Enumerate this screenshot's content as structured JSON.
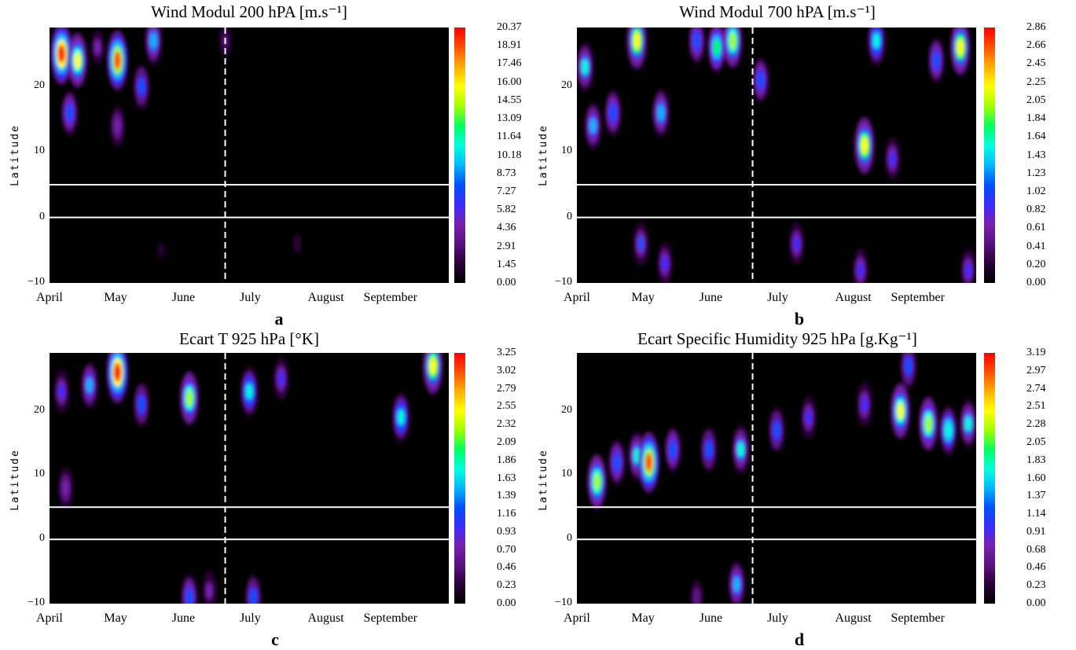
{
  "colors": {
    "background": "#000000",
    "guide_lines": "#ffffff"
  },
  "colorscale": [
    "#000000",
    "#2a0036",
    "#5a1280",
    "#7a20b0",
    "#3a2cff",
    "#0050ff",
    "#00b8ff",
    "#00ffe0",
    "#00ff60",
    "#a0ff00",
    "#ffff00",
    "#ffb000",
    "#ff5000",
    "#ff0000"
  ],
  "panels": [
    {
      "id": "a",
      "label": "a",
      "title": "Wind Modul 200 hPA [m.s⁻¹]",
      "ylabel": "Latitude",
      "yticks": [
        "20",
        "10",
        "0",
        "−10"
      ],
      "xticks": [
        "April",
        "May",
        "June",
        "July",
        "August",
        "September"
      ],
      "colorbar": [
        "20.37",
        "18.91",
        "17.46",
        "16.00",
        "14.55",
        "13.09",
        "11.64",
        "10.18",
        "8.73",
        "7.27",
        "5.82",
        "4.36",
        "2.91",
        "1.45",
        "0.00"
      ],
      "chart_data": {
        "type": "heatmap",
        "xlabel": "",
        "ylabel": "Latitude",
        "ylim": [
          -10,
          29
        ],
        "y_guides": [
          0,
          5
        ],
        "x_guide": "June 21",
        "zlim": [
          0.0,
          20.37
        ],
        "blobs": [
          {
            "t": 0.03,
            "lat": 25,
            "v": 20.0
          },
          {
            "t": 0.07,
            "lat": 24,
            "v": 15.0
          },
          {
            "t": 0.17,
            "lat": 24,
            "v": 18.5
          },
          {
            "t": 0.26,
            "lat": 27,
            "v": 10.0
          },
          {
            "t": 0.05,
            "lat": 16,
            "v": 8.0
          },
          {
            "t": 0.23,
            "lat": 20,
            "v": 7.5
          },
          {
            "t": 0.17,
            "lat": 14,
            "v": 5.0
          },
          {
            "t": 0.12,
            "lat": 26,
            "v": 4.0
          },
          {
            "t": 0.44,
            "lat": 27,
            "v": 2.5
          },
          {
            "t": 0.62,
            "lat": -4,
            "v": 1.5
          },
          {
            "t": 0.28,
            "lat": -5,
            "v": 1.0
          }
        ]
      }
    },
    {
      "id": "b",
      "label": "b",
      "title": "Wind Modul 700 hPA [m.s⁻¹]",
      "ylabel": "Latitude",
      "yticks": [
        "20",
        "10",
        "0",
        "−10"
      ],
      "xticks": [
        "April",
        "May",
        "June",
        "July",
        "August",
        "September"
      ],
      "colorbar": [
        "2.86",
        "2.66",
        "2.45",
        "2.25",
        "2.05",
        "1.84",
        "1.64",
        "1.43",
        "1.23",
        "1.02",
        "0.82",
        "0.61",
        "0.41",
        "0.20",
        "0.00"
      ],
      "chart_data": {
        "type": "heatmap",
        "xlabel": "",
        "ylabel": "Latitude",
        "ylim": [
          -10,
          29
        ],
        "y_guides": [
          0,
          5
        ],
        "x_guide": "June 21",
        "zlim": [
          0.0,
          2.86
        ],
        "blobs": [
          {
            "t": 0.02,
            "lat": 23,
            "v": 1.5
          },
          {
            "t": 0.04,
            "lat": 14,
            "v": 1.3
          },
          {
            "t": 0.09,
            "lat": 16,
            "v": 1.2
          },
          {
            "t": 0.15,
            "lat": 27,
            "v": 2.3
          },
          {
            "t": 0.21,
            "lat": 16,
            "v": 1.4
          },
          {
            "t": 0.3,
            "lat": 27,
            "v": 1.2
          },
          {
            "t": 0.35,
            "lat": 26,
            "v": 1.8
          },
          {
            "t": 0.39,
            "lat": 27,
            "v": 2.0
          },
          {
            "t": 0.46,
            "lat": 21,
            "v": 1.1
          },
          {
            "t": 0.75,
            "lat": 27,
            "v": 1.6
          },
          {
            "t": 0.72,
            "lat": 11,
            "v": 2.3
          },
          {
            "t": 0.79,
            "lat": 9,
            "v": 0.9
          },
          {
            "t": 0.96,
            "lat": 26,
            "v": 2.2
          },
          {
            "t": 0.9,
            "lat": 24,
            "v": 1.1
          },
          {
            "t": 0.16,
            "lat": -4,
            "v": 1.0
          },
          {
            "t": 0.22,
            "lat": -7,
            "v": 0.9
          },
          {
            "t": 0.55,
            "lat": -4,
            "v": 0.8
          },
          {
            "t": 0.71,
            "lat": -8,
            "v": 0.9
          },
          {
            "t": 0.98,
            "lat": -8,
            "v": 0.8
          }
        ]
      }
    },
    {
      "id": "c",
      "label": "c",
      "title": "Ecart T 925 hPa [°K]",
      "ylabel": "Latitude",
      "yticks": [
        "20",
        "10",
        "0",
        "−10"
      ],
      "xticks": [
        "April",
        "May",
        "June",
        "July",
        "August",
        "September"
      ],
      "colorbar": [
        "3.25",
        "3.02",
        "2.79",
        "2.55",
        "2.32",
        "2.09",
        "1.86",
        "1.63",
        "1.39",
        "1.16",
        "0.93",
        "0.70",
        "0.46",
        "0.23",
        "0.00"
      ],
      "chart_data": {
        "type": "heatmap",
        "xlabel": "",
        "ylabel": "Latitude",
        "ylim": [
          -10,
          29
        ],
        "y_guides": [
          0,
          5
        ],
        "x_guide": "June 21",
        "zlim": [
          0.0,
          3.25
        ],
        "blobs": [
          {
            "t": 0.17,
            "lat": 26,
            "v": 3.2
          },
          {
            "t": 0.03,
            "lat": 23,
            "v": 1.0
          },
          {
            "t": 0.1,
            "lat": 24,
            "v": 1.4
          },
          {
            "t": 0.23,
            "lat": 21,
            "v": 1.2
          },
          {
            "t": 0.35,
            "lat": 22,
            "v": 2.2
          },
          {
            "t": 0.5,
            "lat": 23,
            "v": 1.8
          },
          {
            "t": 0.88,
            "lat": 19,
            "v": 1.8
          },
          {
            "t": 0.96,
            "lat": 27,
            "v": 2.6
          },
          {
            "t": 0.58,
            "lat": 25,
            "v": 1.0
          },
          {
            "t": 0.04,
            "lat": 8,
            "v": 0.8
          },
          {
            "t": 0.35,
            "lat": -9,
            "v": 1.3
          },
          {
            "t": 0.51,
            "lat": -9,
            "v": 1.2
          },
          {
            "t": 0.4,
            "lat": -8,
            "v": 0.7
          }
        ]
      }
    },
    {
      "id": "d",
      "label": "d",
      "title": "Ecart Specific Humidity 925 hPa [g.Kg⁻¹]",
      "ylabel": "Latitude",
      "yticks": [
        "20",
        "10",
        "0",
        "−10"
      ],
      "xticks": [
        "April",
        "May",
        "June",
        "July",
        "August",
        "September"
      ],
      "colorbar": [
        "3.19",
        "2.97",
        "2.74",
        "2.51",
        "2.28",
        "2.05",
        "1.83",
        "1.60",
        "1.37",
        "1.14",
        "0.91",
        "0.68",
        "0.46",
        "0.23",
        "0.00"
      ],
      "chart_data": {
        "type": "heatmap",
        "xlabel": "",
        "ylabel": "Latitude",
        "ylim": [
          -10,
          29
        ],
        "y_guides": [
          0,
          5
        ],
        "x_guide": "June 21",
        "zlim": [
          0.0,
          3.19
        ],
        "blobs": [
          {
            "t": 0.05,
            "lat": 9,
            "v": 2.3
          },
          {
            "t": 0.1,
            "lat": 12,
            "v": 1.3
          },
          {
            "t": 0.15,
            "lat": 13,
            "v": 1.6
          },
          {
            "t": 0.18,
            "lat": 12,
            "v": 3.0
          },
          {
            "t": 0.24,
            "lat": 14,
            "v": 1.3
          },
          {
            "t": 0.33,
            "lat": 14,
            "v": 1.2
          },
          {
            "t": 0.41,
            "lat": 14,
            "v": 1.6
          },
          {
            "t": 0.5,
            "lat": 17,
            "v": 1.2
          },
          {
            "t": 0.58,
            "lat": 19,
            "v": 1.0
          },
          {
            "t": 0.72,
            "lat": 21,
            "v": 1.1
          },
          {
            "t": 0.81,
            "lat": 20,
            "v": 2.4
          },
          {
            "t": 0.88,
            "lat": 18,
            "v": 2.2
          },
          {
            "t": 0.93,
            "lat": 17,
            "v": 1.8
          },
          {
            "t": 0.98,
            "lat": 18,
            "v": 1.6
          },
          {
            "t": 0.83,
            "lat": 27,
            "v": 1.2
          },
          {
            "t": 0.4,
            "lat": -7,
            "v": 1.4
          },
          {
            "t": 0.3,
            "lat": -9,
            "v": 0.6
          }
        ]
      }
    }
  ]
}
